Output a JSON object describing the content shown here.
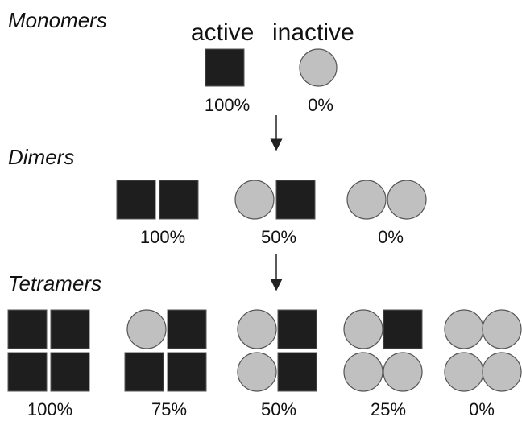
{
  "monomers": {
    "title": "Monomers",
    "headers": [
      "active",
      "inactive"
    ],
    "labels": [
      "100%",
      "0%"
    ]
  },
  "dimers": {
    "title": "Dimers",
    "labels": [
      "100%",
      "50%",
      "0%"
    ]
  },
  "tetramers": {
    "title": "Tetramers",
    "labels": [
      "100%",
      "75%",
      "50%",
      "25%",
      "0%"
    ]
  }
}
